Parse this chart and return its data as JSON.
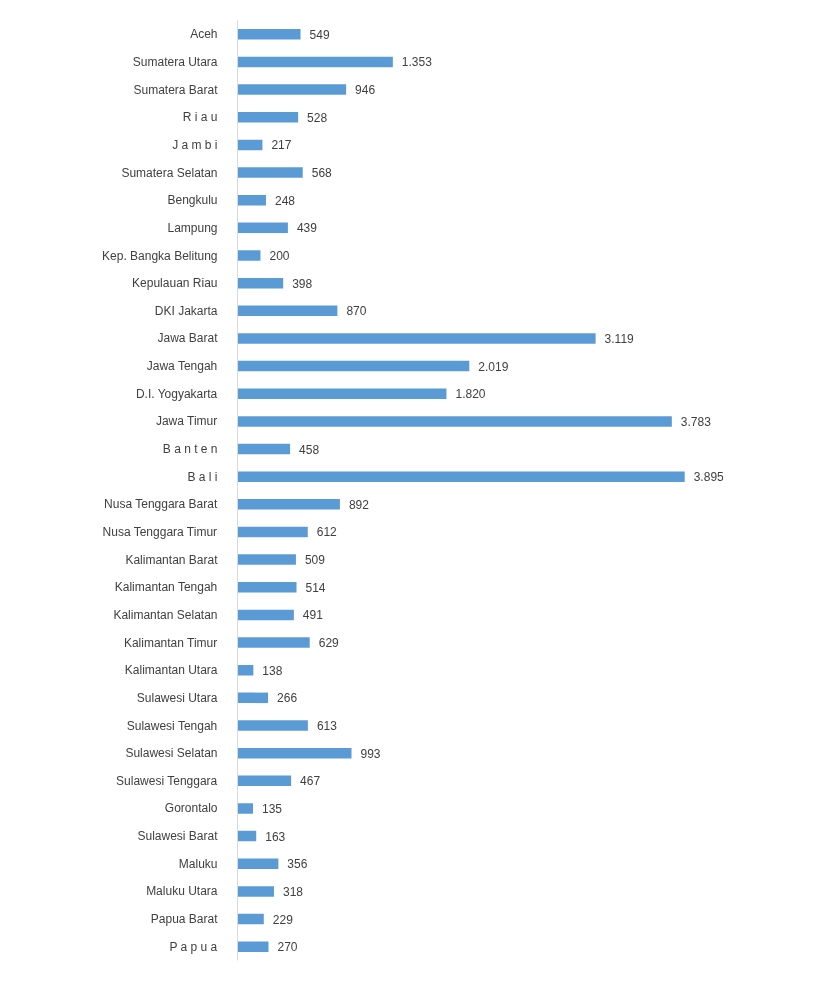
{
  "chart_data": {
    "type": "bar",
    "orientation": "horizontal",
    "categories": [
      "Aceh",
      "Sumatera Utara",
      "Sumatera Barat",
      "R i a u",
      "J a m b i",
      "Sumatera Selatan",
      "Bengkulu",
      "Lampung",
      "Kep. Bangka Belitung",
      "Kepulauan Riau",
      "DKI Jakarta",
      "Jawa Barat",
      "Jawa Tengah",
      "D.I. Yogyakarta",
      "Jawa Timur",
      "B a n t e n",
      "B a l i",
      "Nusa Tenggara Barat",
      "Nusa Tenggara Timur",
      "Kalimantan Barat",
      "Kalimantan Tengah",
      "Kalimantan Selatan",
      "Kalimantan Timur",
      "Kalimantan Utara",
      "Sulawesi Utara",
      "Sulawesi Tengah",
      "Sulawesi Selatan",
      "Sulawesi Tenggara",
      "Gorontalo",
      "Sulawesi Barat",
      "Maluku",
      "Maluku Utara",
      "Papua Barat",
      "P a p u a"
    ],
    "values": [
      549,
      1353,
      946,
      528,
      217,
      568,
      248,
      439,
      200,
      398,
      870,
      3119,
      2019,
      1820,
      3783,
      458,
      3895,
      892,
      612,
      509,
      514,
      491,
      629,
      138,
      266,
      613,
      993,
      467,
      135,
      163,
      356,
      318,
      229,
      270
    ],
    "value_labels": [
      "549",
      "1.353",
      "946",
      "528",
      "217",
      "568",
      "248",
      "439",
      "200",
      "398",
      "870",
      "3.119",
      "2.019",
      "1.820",
      "3.783",
      "458",
      "3.895",
      "892",
      "612",
      "509",
      "514",
      "491",
      "629",
      "138",
      "266",
      "613",
      "993",
      "467",
      "135",
      "163",
      "356",
      "318",
      "229",
      "270"
    ],
    "color": "#5b9bd5",
    "grid": false,
    "tick_labels": "y"
  }
}
